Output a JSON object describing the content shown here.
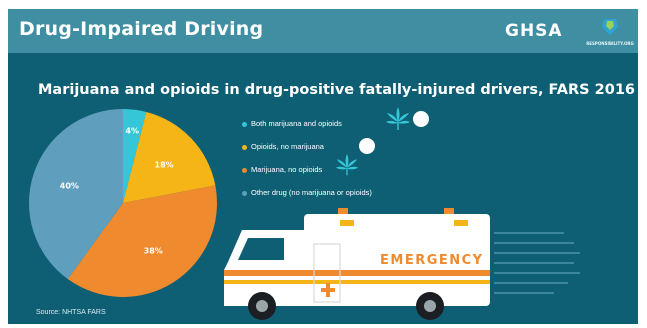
{
  "header": {
    "title": "Drug-Impaired Driving",
    "brand": "GHSA",
    "partner_text": "RESPONSIBILITY.ORG"
  },
  "footer": {
    "source": "Source: NHTSA FARS"
  },
  "ambulance": {
    "label": "EMERGENCY"
  },
  "colors": {
    "background": "#0e5f74",
    "header": "#3f8ea1",
    "both": "#35c7d8",
    "opioids": "#f6b516",
    "marijuana": "#ef8a2e",
    "other": "#5f9fbd"
  },
  "icons": {
    "marijuana": "cannabis-leaf-icon",
    "opioid": "pill-icon"
  },
  "chart_data": {
    "type": "pie",
    "title": "Marijuana and opioids in drug-positive fatally-injured drivers, FARS 2016",
    "series": [
      {
        "name": "Both marijuana and opioids",
        "value": 4,
        "label": "4%",
        "color": "#35c7d8",
        "icons": [
          "cannabis-leaf-icon",
          "pill-icon"
        ]
      },
      {
        "name": "Opioids, no marijuana",
        "value": 18,
        "label": "18%",
        "color": "#f6b516",
        "icons": [
          "pill-icon"
        ]
      },
      {
        "name": "Marijuana, no opioids",
        "value": 38,
        "label": "38%",
        "color": "#ef8a2e",
        "icons": [
          "cannabis-leaf-icon"
        ]
      },
      {
        "name": "Other drug (no marijuana or opioids)",
        "value": 40,
        "label": "40%",
        "color": "#5f9fbd",
        "icons": []
      }
    ],
    "legend_position": "right"
  }
}
